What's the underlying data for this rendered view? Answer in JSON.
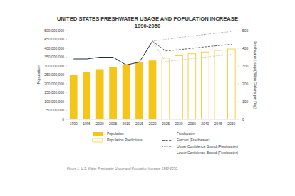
{
  "chart_data": {
    "type": "bar",
    "title": "UNITED STATES FRESHWATER USAGE AND POPULATION INCREASE",
    "subtitle": "1990-2050",
    "y_label": "Population",
    "y2_label": "Freshwater Usage(Billion Gallons per Day)",
    "caption": "Figure 1: U.S. Water Freshwater Usage and Population Increase 1990-2050.",
    "categories": [
      "1990",
      "1995",
      "2000",
      "2005",
      "2010",
      "2015",
      "2020",
      "2025",
      "2030",
      "2035",
      "2040",
      "2045",
      "2050"
    ],
    "ylim": [
      0,
      500000000
    ],
    "yticks": [
      {
        "value": 0,
        "label": "0"
      },
      {
        "value": 50000000,
        "label": "50,000,000"
      },
      {
        "value": 100000000,
        "label": "100,000,000"
      },
      {
        "value": 150000000,
        "label": "150,000,000"
      },
      {
        "value": 200000000,
        "label": "200,000,000"
      },
      {
        "value": 250000000,
        "label": "250,000,000"
      },
      {
        "value": 300000000,
        "label": "300,000,000"
      },
      {
        "value": 350000000,
        "label": "350,000,000"
      },
      {
        "value": 400000000,
        "label": "400,000,000"
      },
      {
        "value": 450000000,
        "label": "450,000,000"
      },
      {
        "value": 500000000,
        "label": "500,000,000"
      }
    ],
    "y2lim": [
      0,
      500
    ],
    "y2ticks": [
      0,
      100,
      200,
      300,
      400,
      500
    ],
    "grid": false,
    "legend": "bottom",
    "series": [
      {
        "name": "Population",
        "type": "bar",
        "color": "#f5c518",
        "line_style": "solid",
        "values": [
          250000000,
          266000000,
          282000000,
          296000000,
          309000000,
          321000000,
          331000000,
          null,
          null,
          null,
          null,
          null,
          null
        ]
      },
      {
        "name": "Population Predictions",
        "type": "bar",
        "color": "#f5c518",
        "line_style": "outline",
        "values": [
          null,
          null,
          null,
          null,
          null,
          null,
          null,
          345000000,
          358000000,
          369000000,
          379000000,
          388000000,
          396000000
        ]
      },
      {
        "name": "Freshwater",
        "type": "line",
        "axis": "y2",
        "color": "#1f2d4a",
        "line_style": "solid",
        "values": [
          340,
          340,
          350,
          350,
          306,
          322,
          440,
          null,
          null,
          null,
          null,
          null,
          null
        ]
      },
      {
        "name": "Forcast (Freshwater)",
        "type": "line",
        "axis": "y2",
        "color": "#3a3a3a",
        "line_style": "dashed",
        "values": [
          null,
          null,
          null,
          null,
          null,
          null,
          440,
          385,
          392,
          400,
          408,
          415,
          422
        ]
      },
      {
        "name": "Upper Confidence Bound (Freshwater)",
        "type": "line",
        "axis": "y2",
        "color": "#8a8a8a",
        "line_style": "dotted",
        "values": [
          null,
          null,
          null,
          null,
          null,
          null,
          440,
          450,
          460,
          470,
          478,
          486,
          495
        ]
      },
      {
        "name": "Lower Confidence Bound (Freshwater)",
        "type": "line",
        "axis": "y2",
        "color": "#b0b0b0",
        "line_style": "dotted",
        "values": [
          null,
          null,
          null,
          null,
          null,
          null,
          440,
          325,
          333,
          342,
          350,
          358,
          366
        ]
      }
    ]
  }
}
